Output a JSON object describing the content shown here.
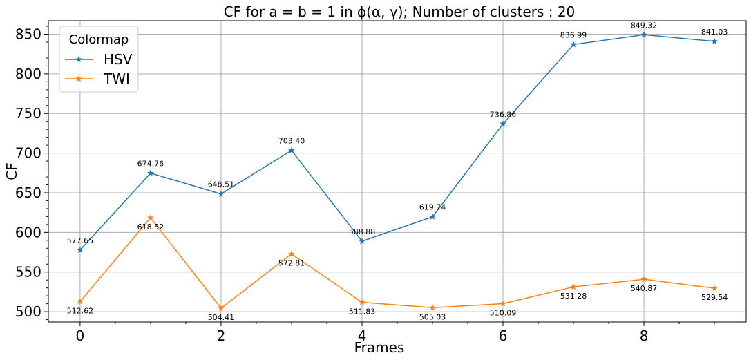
{
  "chart_data": {
    "type": "line",
    "title": "CF for a = b = 1 in ϕ(α, γ); Number of clusters : 20",
    "xlabel": "Frames",
    "ylabel": "CF",
    "x": [
      0,
      1,
      2,
      3,
      4,
      5,
      6,
      7,
      8,
      9
    ],
    "xlim": [
      -0.45,
      9.45
    ],
    "ylim": [
      487,
      867
    ],
    "xticks": [
      0,
      2,
      4,
      6,
      8
    ],
    "yticks": [
      500,
      550,
      600,
      650,
      700,
      750,
      800,
      850
    ],
    "grid": true,
    "legend": {
      "title": "Colormap",
      "position": "top-left"
    },
    "series": [
      {
        "name": "HSV",
        "color": "#1f77b4",
        "marker": "star",
        "values": [
          577.65,
          674.76,
          648.51,
          703.4,
          588.88,
          619.74,
          736.86,
          836.99,
          849.32,
          841.03
        ],
        "labels": [
          "577.65",
          "674.76",
          "648.51",
          "703.40",
          "588.88",
          "619.74",
          "736.86",
          "836.99",
          "849.32",
          "841.03"
        ],
        "label_position": "above"
      },
      {
        "name": "TWI",
        "color": "#ff7f0e",
        "marker": "star",
        "values": [
          512.62,
          618.52,
          504.41,
          572.81,
          511.83,
          505.03,
          510.09,
          531.28,
          540.87,
          529.54
        ],
        "labels": [
          "512.62",
          "618.52",
          "504.41",
          "572.81",
          "511.83",
          "505.03",
          "510.09",
          "531.28",
          "540.87",
          "529.54"
        ],
        "label_position": "below"
      }
    ]
  }
}
